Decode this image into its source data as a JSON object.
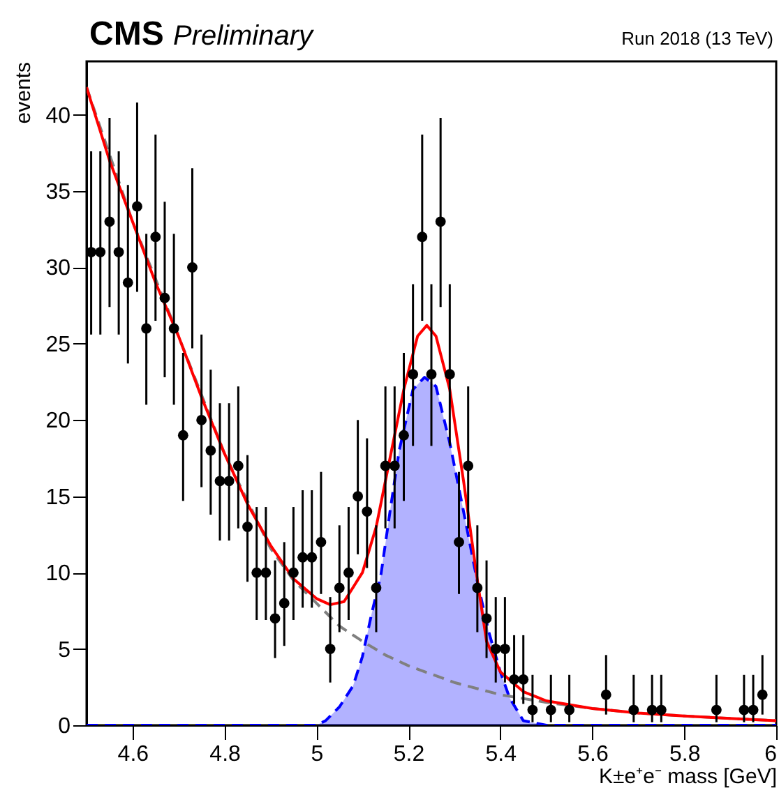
{
  "chart_data": {
    "type": "scatter",
    "title": "CMS",
    "subtitle": "Preliminary",
    "annotations": [
      "Run 2018 (13 TeV)"
    ],
    "xlabel": "K±e⁺e⁻ mass [GeV]",
    "ylabel": "events",
    "xlim": [
      4.5,
      6.0
    ],
    "ylim": [
      0,
      43.5
    ],
    "xticks": [
      4.6,
      4.8,
      {
        "value": 5,
        "label": "5"
      },
      5.2,
      5.4,
      5.6,
      5.8,
      {
        "value": 6,
        "label": "6"
      }
    ],
    "yticks": [
      0,
      5,
      10,
      15,
      20,
      25,
      30,
      35,
      40
    ],
    "grid": false,
    "series": [
      {
        "type": "area",
        "color": "#0000ff",
        "line_style": "dashed",
        "x": [
          4.5,
          5.0,
          5.02,
          5.05,
          5.08,
          5.1,
          5.12,
          5.14,
          5.16,
          5.18,
          5.21,
          5.235,
          5.26,
          5.29,
          5.32,
          5.35,
          5.375,
          5.4,
          5.42,
          5.45,
          5.5,
          6.0
        ],
        "values": [
          0,
          0,
          0.3,
          1.2,
          2.6,
          4.5,
          7.3,
          9.8,
          14,
          18,
          22,
          22.8,
          22.2,
          18.5,
          14,
          9.4,
          6.1,
          3.5,
          1.8,
          0.3,
          0,
          0
        ]
      },
      {
        "type": "line",
        "color": "#808080",
        "line_style": "dashed",
        "x": [
          4.5,
          4.6,
          4.7,
          4.8,
          4.9,
          4.95,
          5.0,
          5.05,
          5.1,
          5.15,
          5.2,
          5.3,
          5.4,
          5.5,
          5.6,
          5.7,
          5.8,
          6.0
        ],
        "values": [
          41.8,
          33,
          25.5,
          17.8,
          11.6,
          9.5,
          8.0,
          6.5,
          5.5,
          4.6,
          3.9,
          2.8,
          2.0,
          1.5,
          1.1,
          0.8,
          0.6,
          0.3
        ]
      },
      {
        "type": "line",
        "color": "#ff0000",
        "line_style": "solid",
        "x": [
          4.5,
          4.55,
          4.6,
          4.65,
          4.7,
          4.75,
          4.8,
          4.85,
          4.9,
          4.95,
          5.0,
          5.03,
          5.06,
          5.1,
          5.13,
          5.16,
          5.19,
          5.22,
          5.24,
          5.26,
          5.29,
          5.32,
          5.35,
          5.37,
          5.4,
          5.45,
          5.5,
          5.6,
          5.7,
          5.8,
          6.0
        ],
        "values": [
          41.8,
          37,
          33,
          29,
          25.5,
          21.5,
          17.8,
          14.5,
          11.8,
          9.6,
          8.3,
          7.9,
          8.1,
          10,
          13,
          17.5,
          22,
          25.5,
          26.2,
          25.5,
          22,
          16,
          9.5,
          5.5,
          3.5,
          2.2,
          1.6,
          1.1,
          0.8,
          0.6,
          0.3
        ]
      },
      {
        "color": "#000000",
        "marker": "circle",
        "x": [
          4.51,
          4.53,
          4.55,
          4.57,
          4.59,
          4.61,
          4.63,
          4.65,
          4.67,
          4.69,
          4.71,
          4.73,
          4.75,
          4.77,
          4.79,
          4.81,
          4.83,
          4.85,
          4.87,
          4.89,
          4.91,
          4.93,
          4.95,
          4.97,
          4.99,
          5.01,
          5.03,
          5.05,
          5.07,
          5.09,
          5.11,
          5.13,
          5.15,
          5.17,
          5.19,
          5.21,
          5.23,
          5.25,
          5.27,
          5.29,
          5.31,
          5.33,
          5.35,
          5.37,
          5.39,
          5.41,
          5.43,
          5.45,
          5.47,
          5.51,
          5.55,
          5.63,
          5.69,
          5.73,
          5.75,
          5.87,
          5.93,
          5.95,
          5.97
        ],
        "values": [
          31,
          31,
          33,
          31,
          29,
          34,
          26,
          32,
          28,
          26,
          19,
          30,
          20,
          18,
          16,
          16,
          17,
          13,
          10,
          10,
          7,
          8,
          10,
          11,
          11,
          12,
          5,
          9,
          10,
          15,
          14,
          9,
          17,
          17,
          19,
          23,
          32,
          23,
          33,
          23,
          12,
          17,
          9,
          7,
          5,
          5,
          3,
          3,
          1,
          1,
          1,
          2,
          1,
          1,
          1,
          1,
          1,
          1,
          2
        ],
        "errors": [
          [
            25.6,
            37.6
          ],
          [
            25.6,
            37.6
          ],
          [
            27.4,
            39.8
          ],
          [
            25.6,
            37.6
          ],
          [
            23.7,
            35.4
          ],
          [
            28.4,
            40.8
          ],
          [
            21.0,
            32.2
          ],
          [
            26.5,
            38.7
          ],
          [
            22.8,
            34.3
          ],
          [
            21.0,
            32.2
          ],
          [
            14.7,
            24.4
          ],
          [
            24.7,
            36.5
          ],
          [
            15.6,
            25.6
          ],
          [
            13.8,
            23.3
          ],
          [
            12.1,
            21.1
          ],
          [
            12.1,
            21.1
          ],
          [
            12.9,
            22.2
          ],
          [
            9.4,
            17.7
          ],
          [
            6.9,
            14.3
          ],
          [
            6.9,
            14.3
          ],
          [
            4.4,
            10.8
          ],
          [
            5.2,
            12.0
          ],
          [
            6.9,
            14.3
          ],
          [
            7.7,
            15.4
          ],
          [
            7.7,
            15.4
          ],
          [
            8.6,
            16.6
          ],
          [
            2.8,
            8.4
          ],
          [
            6.1,
            13.1
          ],
          [
            6.9,
            14.3
          ],
          [
            11.2,
            20.0
          ],
          [
            10.3,
            18.8
          ],
          [
            6.1,
            13.1
          ],
          [
            12.9,
            22.2
          ],
          [
            12.9,
            22.2
          ],
          [
            14.7,
            24.4
          ],
          [
            18.3,
            28.9
          ],
          [
            26.5,
            38.7
          ],
          [
            18.3,
            28.9
          ],
          [
            27.4,
            39.8
          ],
          [
            18.3,
            28.9
          ],
          [
            8.6,
            16.6
          ],
          [
            12.9,
            22.2
          ],
          [
            6.1,
            13.1
          ],
          [
            4.4,
            10.8
          ],
          [
            2.8,
            8.4
          ],
          [
            2.8,
            8.4
          ],
          [
            1.4,
            5.9
          ],
          [
            1.4,
            5.9
          ],
          [
            0.2,
            3.3
          ],
          [
            0.2,
            3.3
          ],
          [
            0.2,
            3.3
          ],
          [
            0.7,
            4.6
          ],
          [
            0.2,
            3.3
          ],
          [
            0.2,
            3.3
          ],
          [
            0.2,
            3.3
          ],
          [
            0.2,
            3.3
          ],
          [
            0.2,
            3.3
          ],
          [
            0.2,
            3.3
          ],
          [
            0.7,
            4.6
          ]
        ]
      }
    ]
  }
}
